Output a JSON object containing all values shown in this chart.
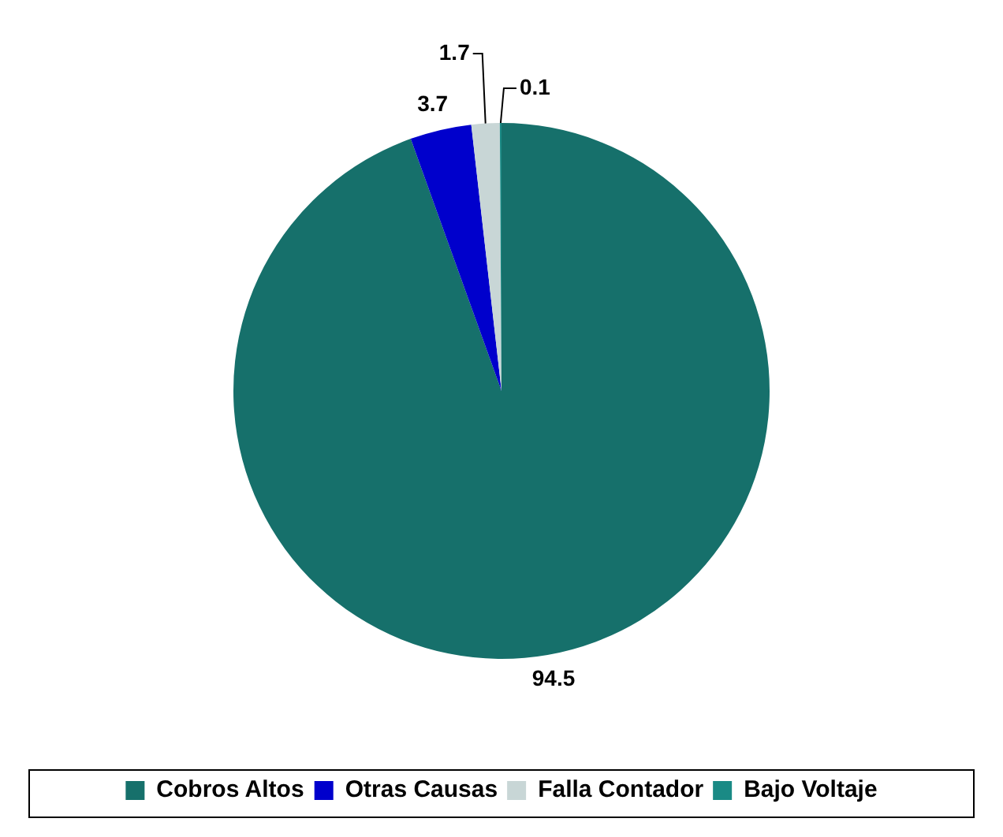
{
  "chart_data": {
    "type": "pie",
    "categories": [
      "Cobros Altos",
      "Otras Causas",
      "Falla Contador",
      "Bajo Voltaje"
    ],
    "values": [
      94.5,
      3.7,
      1.7,
      0.1
    ],
    "colors": [
      "#16706b",
      "#0000cc",
      "#c8d6d6",
      "#1a8a85"
    ],
    "data_labels": true,
    "legend": "bottom"
  }
}
